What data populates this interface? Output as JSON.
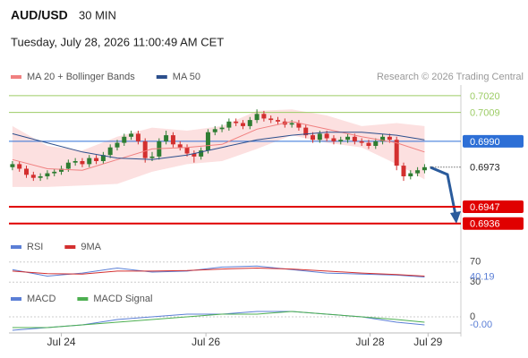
{
  "header": {
    "symbol": "AUD/USD",
    "interval": "30 MIN",
    "timestamp": "Tuesday, July 28, 2026 11:00:49 AM CET"
  },
  "chart_data": [
    {
      "type": "candlestick",
      "credit": "Research © 2026 Trading Central",
      "xlim": [
        -0.5,
        64.2
      ],
      "xticks": [
        {
          "value": 7,
          "label": "Jul 24"
        },
        {
          "value": 27.7,
          "label": "Jul 26"
        },
        {
          "value": 51.2,
          "label": "Jul 28"
        },
        {
          "value": 59.5,
          "label": "Jul 29"
        }
      ],
      "ylim": [
        0.6927,
        0.7027
      ],
      "up_color": "#2e7d32",
      "down_color": "#d32f2f",
      "candles": [
        [
          0.6973,
          0.6977,
          0.6971,
          0.6975
        ],
        [
          0.6975,
          0.6977,
          0.697,
          0.6972
        ],
        [
          0.6972,
          0.6974,
          0.6966,
          0.6968
        ],
        [
          0.6968,
          0.697,
          0.6964,
          0.6966
        ],
        [
          0.6966,
          0.6969,
          0.6964,
          0.6967
        ],
        [
          0.6967,
          0.6971,
          0.6965,
          0.6969
        ],
        [
          0.6969,
          0.6972,
          0.6967,
          0.697
        ],
        [
          0.697,
          0.6974,
          0.6968,
          0.6972
        ],
        [
          0.6972,
          0.6978,
          0.697,
          0.6976
        ],
        [
          0.6976,
          0.6979,
          0.6974,
          0.6977
        ],
        [
          0.6977,
          0.6979,
          0.6973,
          0.6975
        ],
        [
          0.6975,
          0.6981,
          0.6973,
          0.6979
        ],
        [
          0.6979,
          0.6981,
          0.6975,
          0.6977
        ],
        [
          0.6977,
          0.6983,
          0.6975,
          0.6981
        ],
        [
          0.6981,
          0.6988,
          0.6979,
          0.6986
        ],
        [
          0.6986,
          0.6991,
          0.6984,
          0.6989
        ],
        [
          0.6989,
          0.6995,
          0.6987,
          0.6993
        ],
        [
          0.6993,
          0.6997,
          0.6991,
          0.6995
        ],
        [
          0.6995,
          0.6997,
          0.6988,
          0.699
        ],
        [
          0.699,
          0.6992,
          0.6976,
          0.6979
        ],
        [
          0.6979,
          0.6983,
          0.6977,
          0.698
        ],
        [
          0.698,
          0.6992,
          0.6978,
          0.699
        ],
        [
          0.699,
          0.6997,
          0.6988,
          0.6994
        ],
        [
          0.6994,
          0.6996,
          0.6986,
          0.6988
        ],
        [
          0.6988,
          0.699,
          0.6984,
          0.6986
        ],
        [
          0.6986,
          0.6988,
          0.698,
          0.6982
        ],
        [
          0.6982,
          0.6984,
          0.6976,
          0.698
        ],
        [
          0.698,
          0.6986,
          0.6978,
          0.6984
        ],
        [
          0.6984,
          0.6998,
          0.6982,
          0.6996
        ],
        [
          0.6996,
          0.7,
          0.6994,
          0.6998
        ],
        [
          0.6998,
          0.7001,
          0.6996,
          0.6999
        ],
        [
          0.6999,
          0.7005,
          0.6997,
          0.7003
        ],
        [
          0.7003,
          0.7005,
          0.7,
          0.7002
        ],
        [
          0.7002,
          0.7004,
          0.6998,
          0.7
        ],
        [
          0.7,
          0.7006,
          0.6998,
          0.7004
        ],
        [
          0.7004,
          0.7011,
          0.7002,
          0.7008
        ],
        [
          0.7008,
          0.701,
          0.7003,
          0.7005
        ],
        [
          0.7005,
          0.7007,
          0.7002,
          0.7004
        ],
        [
          0.7004,
          0.7006,
          0.7001,
          0.7003
        ],
        [
          0.7003,
          0.7005,
          0.6999,
          0.7001
        ],
        [
          0.7001,
          0.7004,
          0.6999,
          0.7002
        ],
        [
          0.7002,
          0.7004,
          0.6997,
          0.6999
        ],
        [
          0.6999,
          0.7001,
          0.6992,
          0.6994
        ],
        [
          0.6994,
          0.6996,
          0.6989,
          0.6991
        ],
        [
          0.6991,
          0.6997,
          0.6989,
          0.6995
        ],
        [
          0.6995,
          0.6997,
          0.699,
          0.6992
        ],
        [
          0.6992,
          0.6994,
          0.6988,
          0.699
        ],
        [
          0.699,
          0.6993,
          0.6988,
          0.6991
        ],
        [
          0.6991,
          0.6995,
          0.6989,
          0.6993
        ],
        [
          0.6993,
          0.6995,
          0.6988,
          0.699
        ],
        [
          0.699,
          0.6992,
          0.6987,
          0.6989
        ],
        [
          0.6989,
          0.6991,
          0.6985,
          0.6987
        ],
        [
          0.6987,
          0.6992,
          0.6985,
          0.699
        ],
        [
          0.699,
          0.6995,
          0.6988,
          0.6993
        ],
        [
          0.6993,
          0.6995,
          0.6989,
          0.6991
        ],
        [
          0.6991,
          0.6993,
          0.6971,
          0.6974
        ],
        [
          0.6974,
          0.6976,
          0.6964,
          0.6967
        ],
        [
          0.6967,
          0.6971,
          0.6965,
          0.6969
        ],
        [
          0.6969,
          0.6973,
          0.6967,
          0.6971
        ],
        [
          0.6971,
          0.6975,
          0.6969,
          0.6973
        ]
      ],
      "x": [
        0,
        5,
        10,
        15,
        20,
        25,
        30,
        35,
        40,
        45,
        50,
        55,
        59
      ],
      "series": [
        {
          "name": "MA 20 + Bollinger Bands",
          "color": "#f08080",
          "band_color": "#fbd3d3",
          "values": [
            0.6978,
            0.6972,
            0.6971,
            0.6978,
            0.6985,
            0.6986,
            0.6988,
            0.6998,
            0.7003,
            0.6998,
            0.6993,
            0.6989,
            0.6983
          ],
          "upper": [
            0.7,
            0.6987,
            0.6984,
            0.6993,
            0.6999,
            0.6997,
            0.7,
            0.701,
            0.7011,
            0.7007,
            0.7,
            0.7002,
            0.7
          ],
          "lower": [
            0.696,
            0.696,
            0.6961,
            0.6962,
            0.697,
            0.6975,
            0.6977,
            0.6985,
            0.6994,
            0.6989,
            0.6986,
            0.6975,
            0.6965
          ]
        },
        {
          "name": "MA 50",
          "color": "#2c4f8c",
          "values": [
            0.6995,
            0.6989,
            0.6983,
            0.6979,
            0.6978,
            0.6981,
            0.6986,
            0.6991,
            0.6994,
            0.6996,
            0.6996,
            0.6994,
            0.6991
          ]
        }
      ],
      "levels": [
        {
          "value": 0.702,
          "label": "0.7020",
          "color": "#9ccc65",
          "line": "thin",
          "tag": "text"
        },
        {
          "value": 0.7009,
          "color": "#9ccc65",
          "line": "thin",
          "tag": "text"
        },
        {
          "value": 0.699,
          "label": "0.6990",
          "color": "#2d6fd6",
          "line": "thin",
          "tag": "box"
        },
        {
          "value": 0.6973,
          "color": "#222222",
          "line": "dotted",
          "tag": "plain"
        },
        {
          "value": 0.6947,
          "color": "#e00000",
          "line": "thick",
          "tag": "box"
        },
        {
          "value": 0.6936,
          "color": "#e00000",
          "line": "thick",
          "tag": "box"
        }
      ]
    },
    {
      "type": "line",
      "xlim": [
        -0.5,
        64.2
      ],
      "ylim": [
        25,
        75
      ],
      "x": [
        0,
        5,
        10,
        15,
        20,
        25,
        30,
        35,
        40,
        45,
        50,
        55,
        59
      ],
      "levels": [
        70,
        30
      ],
      "series": [
        {
          "name": "RSI",
          "color": "#5b7fd6",
          "values": [
            55,
            42,
            48,
            58,
            50,
            52,
            60,
            62,
            55,
            48,
            46,
            44,
            40.19
          ]
        },
        {
          "name": "9MA",
          "color": "#d32f2f",
          "values": [
            52,
            47,
            46,
            52,
            52,
            53,
            56,
            58,
            56,
            52,
            48,
            45,
            42
          ]
        }
      ]
    },
    {
      "type": "line",
      "xlim": [
        -0.5,
        64.2
      ],
      "ylim": [
        -0.0006,
        0.0003
      ],
      "x": [
        0,
        5,
        10,
        15,
        20,
        25,
        30,
        35,
        40,
        45,
        50,
        55,
        59
      ],
      "levels": [
        0
      ],
      "series": [
        {
          "name": "MACD",
          "color": "#5b7fd6",
          "values": [
            -0.0005,
            -0.0004,
            -0.0003,
            -0.0001,
            0,
            0.0001,
            0.0001,
            0.0002,
            0.0002,
            0.0001,
            0,
            -0.0002,
            -0.0003
          ],
          "value_labels": [
            null,
            null,
            null,
            null,
            null,
            null,
            null,
            null,
            null,
            null,
            null,
            null,
            "-0.00"
          ]
        },
        {
          "name": "MACD Signal",
          "color": "#4caf50",
          "values": [
            -0.0004,
            -0.0004,
            -0.0003,
            -0.0002,
            -0.0001,
            0,
            0.0001,
            0.0001,
            0.0002,
            0.0001,
            0,
            -0.0001,
            -0.0002
          ]
        }
      ]
    }
  ]
}
